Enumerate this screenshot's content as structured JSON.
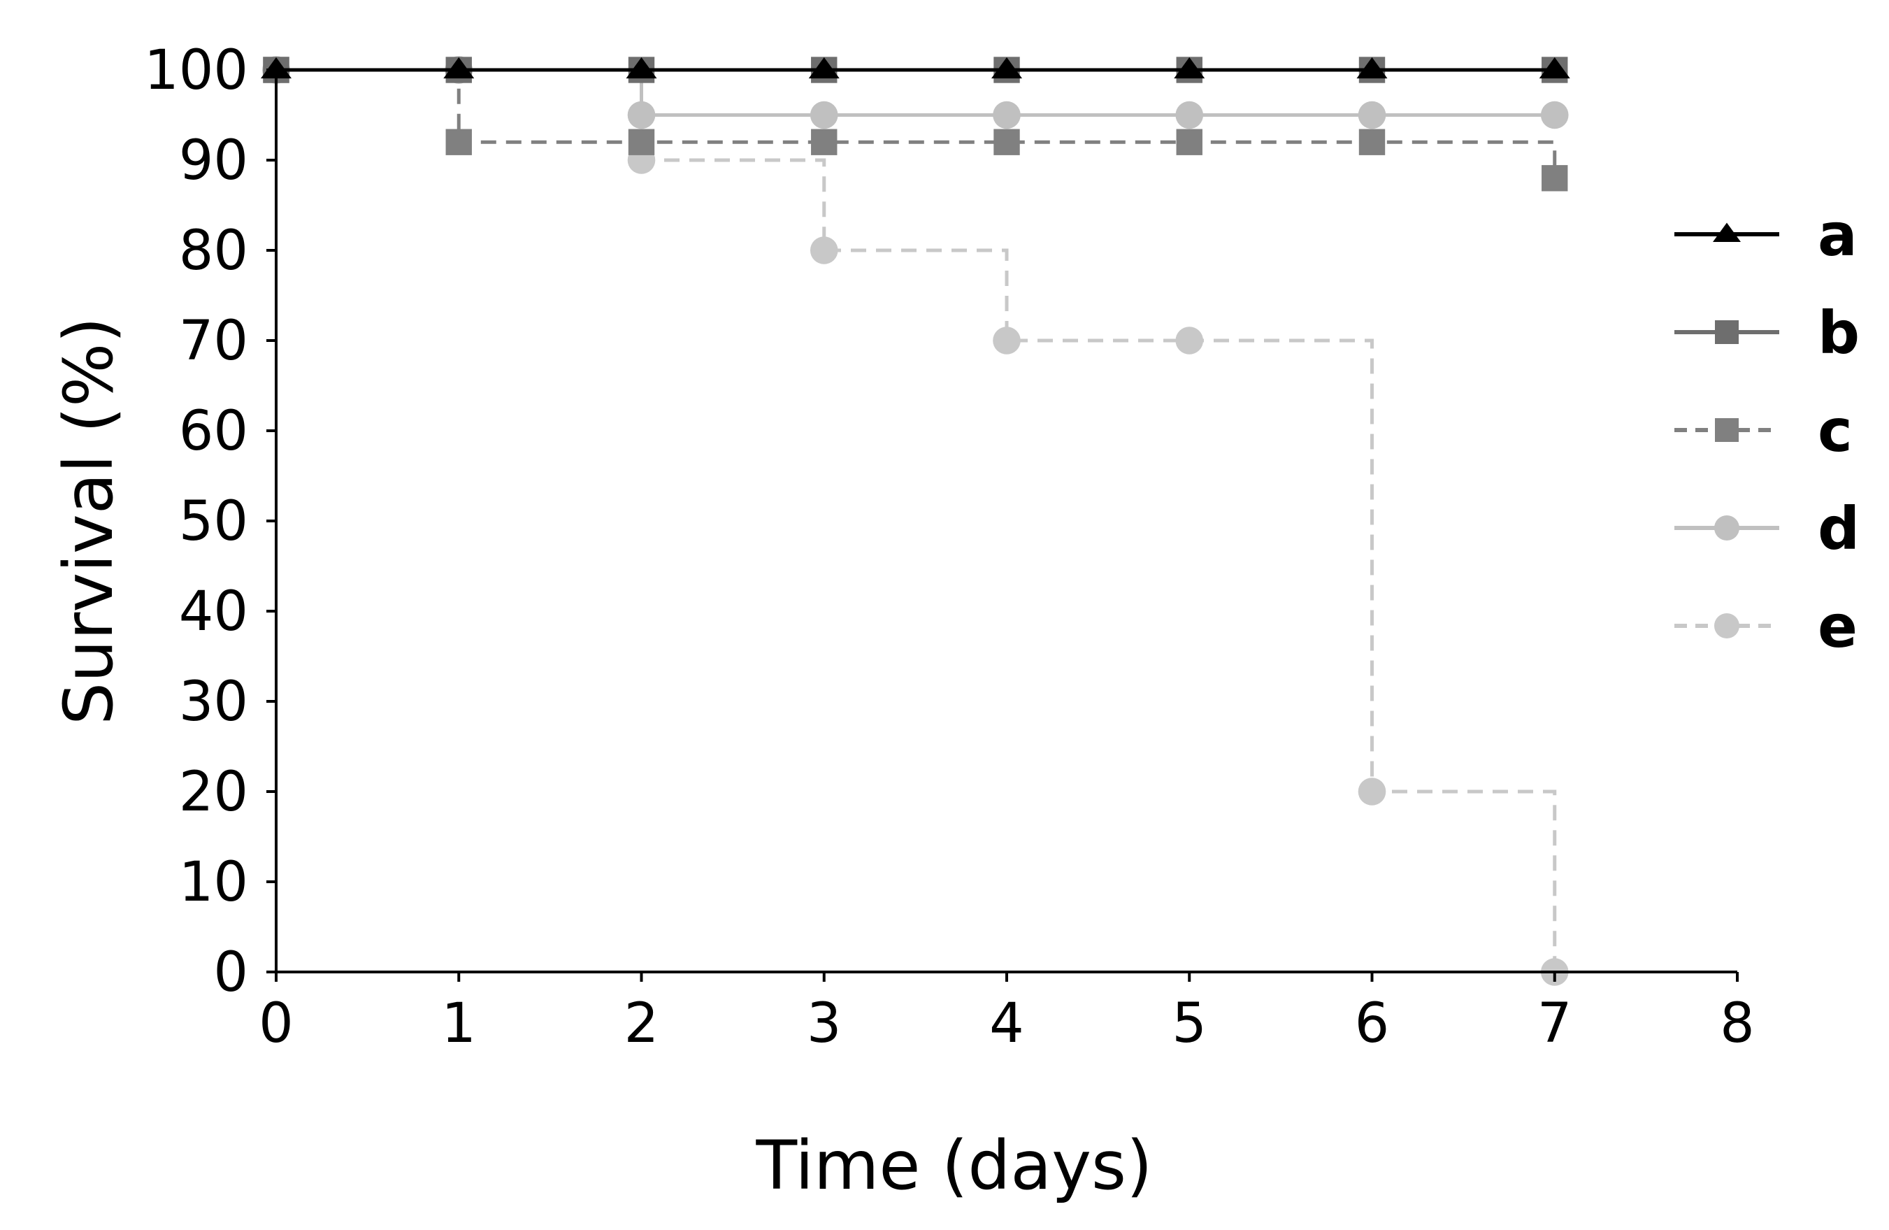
{
  "chart_data": {
    "type": "line",
    "step": true,
    "xlabel": "Time (days)",
    "ylabel": "Survival (%)",
    "xlim": [
      0,
      8
    ],
    "ylim": [
      0,
      100
    ],
    "x_ticks": [
      "0",
      "1",
      "2",
      "3",
      "4",
      "5",
      "6",
      "7",
      "8"
    ],
    "y_ticks": [
      "0",
      "10",
      "20",
      "30",
      "40",
      "50",
      "60",
      "70",
      "80",
      "90",
      "100"
    ],
    "grid": false,
    "legend_position": "right",
    "series": [
      {
        "name": "a",
        "color": "#000000",
        "dash": "solid",
        "marker": "triangle",
        "x": [
          0,
          1,
          2,
          3,
          4,
          5,
          6,
          7
        ],
        "y": [
          100,
          100,
          100,
          100,
          100,
          100,
          100,
          100
        ]
      },
      {
        "name": "b",
        "color": "#6e6e6e",
        "dash": "solid",
        "marker": "square",
        "x": [
          0,
          1,
          2,
          3,
          4,
          5,
          6,
          7
        ],
        "y": [
          100,
          100,
          100,
          100,
          100,
          100,
          100,
          100
        ]
      },
      {
        "name": "c",
        "color": "#808080",
        "dash": "dashed",
        "marker": "square",
        "x": [
          0,
          1,
          2,
          3,
          4,
          5,
          6,
          7
        ],
        "y": [
          100,
          92,
          92,
          92,
          92,
          92,
          92,
          88
        ]
      },
      {
        "name": "d",
        "color": "#c0c0c0",
        "dash": "solid",
        "marker": "circle",
        "x": [
          0,
          1,
          2,
          3,
          4,
          5,
          6,
          7
        ],
        "y": [
          100,
          100,
          95,
          95,
          95,
          95,
          95,
          95
        ]
      },
      {
        "name": "e",
        "color": "#c8c8c8",
        "dash": "dashed",
        "marker": "circle",
        "x": [
          0,
          1,
          2,
          3,
          4,
          5,
          6,
          7
        ],
        "y": [
          100,
          100,
          90,
          80,
          70,
          70,
          20,
          0
        ]
      }
    ]
  }
}
